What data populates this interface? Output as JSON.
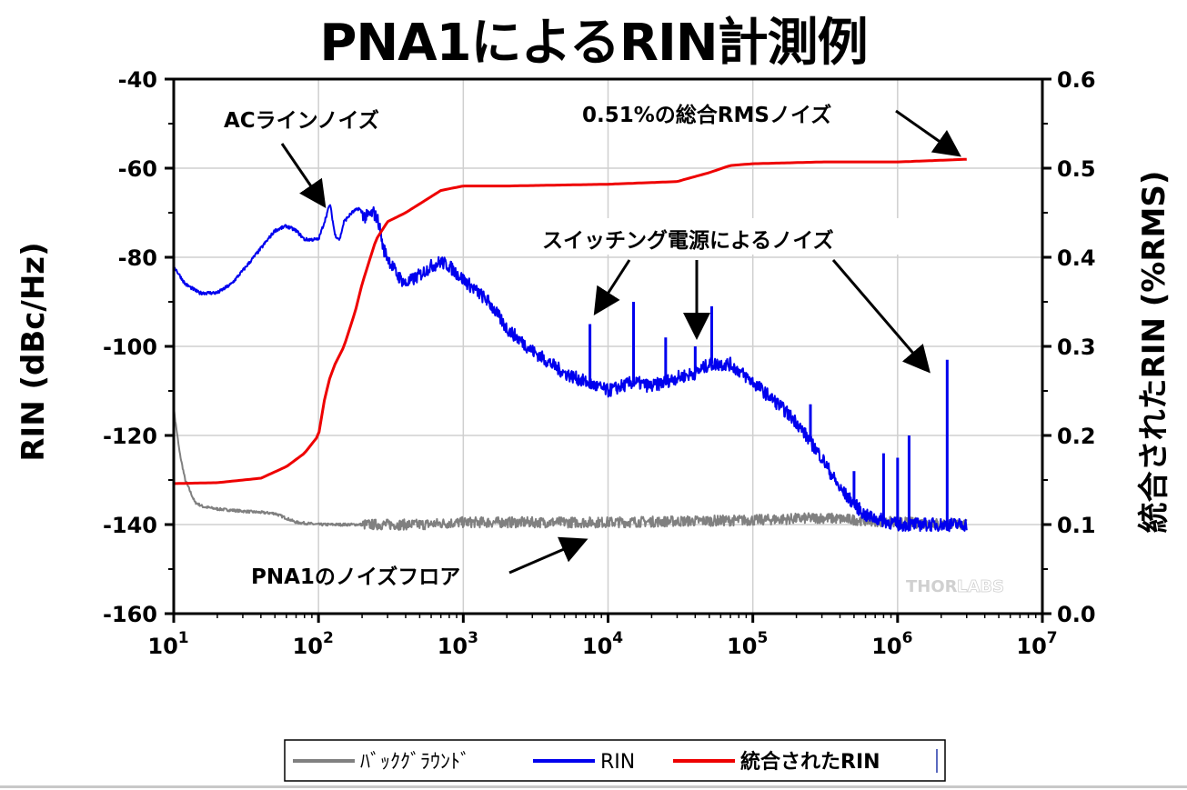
{
  "title": "PNA1によるRIN計測例",
  "chart_data": {
    "type": "line",
    "xlabel": "",
    "x_scale": "log",
    "xlim": [
      10,
      10000000
    ],
    "x_ticks": [
      {
        "value": 10,
        "base": "10",
        "exp": "1"
      },
      {
        "value": 100,
        "base": "10",
        "exp": "2"
      },
      {
        "value": 1000,
        "base": "10",
        "exp": "3"
      },
      {
        "value": 10000,
        "base": "10",
        "exp": "4"
      },
      {
        "value": 100000,
        "base": "10",
        "exp": "5"
      },
      {
        "value": 1000000,
        "base": "10",
        "exp": "6"
      },
      {
        "value": 10000000,
        "base": "10",
        "exp": "7"
      }
    ],
    "ylabel_left": "RIN (dBc/Hz)",
    "ylim_left": [
      -160,
      -40
    ],
    "y_ticks_left": [
      "-40",
      "-60",
      "-80",
      "-100",
      "-120",
      "-140",
      "-160"
    ],
    "ylabel_right": "統合されたRIN (%RMS)",
    "ylim_right": [
      0.0,
      0.6
    ],
    "y_ticks_right": [
      "0.6",
      "0.5",
      "0.4",
      "0.3",
      "0.2",
      "0.1",
      "0.0"
    ],
    "grid": true,
    "watermark": {
      "left": "THOR",
      "right": "LABS"
    },
    "legend": {
      "placement": "bottom",
      "entries": [
        {
          "label": "ﾊﾞｯｸｸﾞﾗｳﾝﾄﾞ",
          "color": "#808080"
        },
        {
          "label": "RIN",
          "color": "#0000ee"
        },
        {
          "label": "統合されたRIN",
          "color": "#ee0000"
        }
      ]
    },
    "series": [
      {
        "name": "ﾊﾞｯｸｸﾞﾗｳﾝﾄﾞ",
        "axis": "left",
        "color": "#808080",
        "noise_db": 1.2,
        "x": [
          10,
          11,
          12,
          14,
          16,
          20,
          30,
          50,
          70,
          100,
          200,
          500,
          1000,
          10000,
          100000,
          300000,
          1000000,
          3000000
        ],
        "y": [
          -114,
          -124,
          -130,
          -135,
          -136,
          -136.5,
          -137,
          -137.5,
          -139.5,
          -140,
          -140,
          -140,
          -139.5,
          -139.5,
          -139,
          -138.5,
          -139.5,
          -140
        ]
      },
      {
        "name": "RIN",
        "axis": "left",
        "color": "#0000ee",
        "noise_db": 1.5,
        "x": [
          10,
          12,
          15,
          20,
          25,
          30,
          40,
          50,
          60,
          70,
          80,
          100,
          110,
          120,
          130,
          140,
          150,
          170,
          190,
          210,
          240,
          260,
          280,
          300,
          350,
          400,
          500,
          600,
          700,
          800,
          1000,
          1500,
          2000,
          3000,
          5000,
          7000,
          10000,
          15000,
          20000,
          30000,
          40000,
          50000,
          70000,
          100000,
          150000,
          200000,
          300000,
          400000,
          600000,
          1000000,
          2000000,
          3000000
        ],
        "y": [
          -82,
          -86,
          -88,
          -88,
          -86,
          -83,
          -78,
          -74,
          -73,
          -74,
          -76,
          -76,
          -72,
          -68,
          -75,
          -76,
          -72,
          -70,
          -69,
          -71,
          -70,
          -72,
          -78,
          -80,
          -84,
          -86,
          -84,
          -82,
          -81,
          -82,
          -85,
          -90,
          -96,
          -101,
          -106,
          -108,
          -110,
          -108,
          -109,
          -107,
          -106,
          -104,
          -104,
          -108,
          -113,
          -117,
          -125,
          -132,
          -138,
          -140,
          -140,
          -140
        ],
        "spikes": [
          {
            "x": 7500,
            "y": -95
          },
          {
            "x": 15000,
            "y": -90
          },
          {
            "x": 25000,
            "y": -98
          },
          {
            "x": 40000,
            "y": -100
          },
          {
            "x": 52000,
            "y": -91
          },
          {
            "x": 250000,
            "y": -113
          },
          {
            "x": 500000,
            "y": -128
          },
          {
            "x": 800000,
            "y": -124
          },
          {
            "x": 1000000,
            "y": -125
          },
          {
            "x": 1200000,
            "y": -120
          },
          {
            "x": 2200000,
            "y": -103
          }
        ]
      },
      {
        "name": "統合されたRIN",
        "axis": "right",
        "color": "#ee0000",
        "x": [
          10,
          20,
          40,
          60,
          80,
          100,
          110,
          120,
          130,
          150,
          180,
          200,
          250,
          300,
          400,
          500,
          700,
          1000,
          2000,
          10000,
          30000,
          50000,
          70000,
          100000,
          300000,
          1000000,
          3000000
        ],
        "y": [
          0.146,
          0.147,
          0.152,
          0.165,
          0.18,
          0.2,
          0.24,
          0.265,
          0.28,
          0.3,
          0.34,
          0.37,
          0.42,
          0.44,
          0.45,
          0.46,
          0.475,
          0.48,
          0.48,
          0.482,
          0.485,
          0.495,
          0.503,
          0.505,
          0.507,
          0.507,
          0.51
        ]
      }
    ],
    "annotations": [
      {
        "text": "ACラインノイズ",
        "target_x": 115,
        "target_y": -69
      },
      {
        "text": "0.51%の総合RMSノイズ",
        "target_x": 2900000,
        "target_y_right": 0.51
      },
      {
        "text": "スイッチング電源によるノイズ",
        "targets": [
          {
            "x": 7200,
            "y": -95
          },
          {
            "x": 40000,
            "y": -99
          },
          {
            "x": 2200000,
            "y": -106
          }
        ]
      },
      {
        "text": "PNA1のノイズフロア",
        "target_x": 8000,
        "target_y": -143
      }
    ]
  }
}
